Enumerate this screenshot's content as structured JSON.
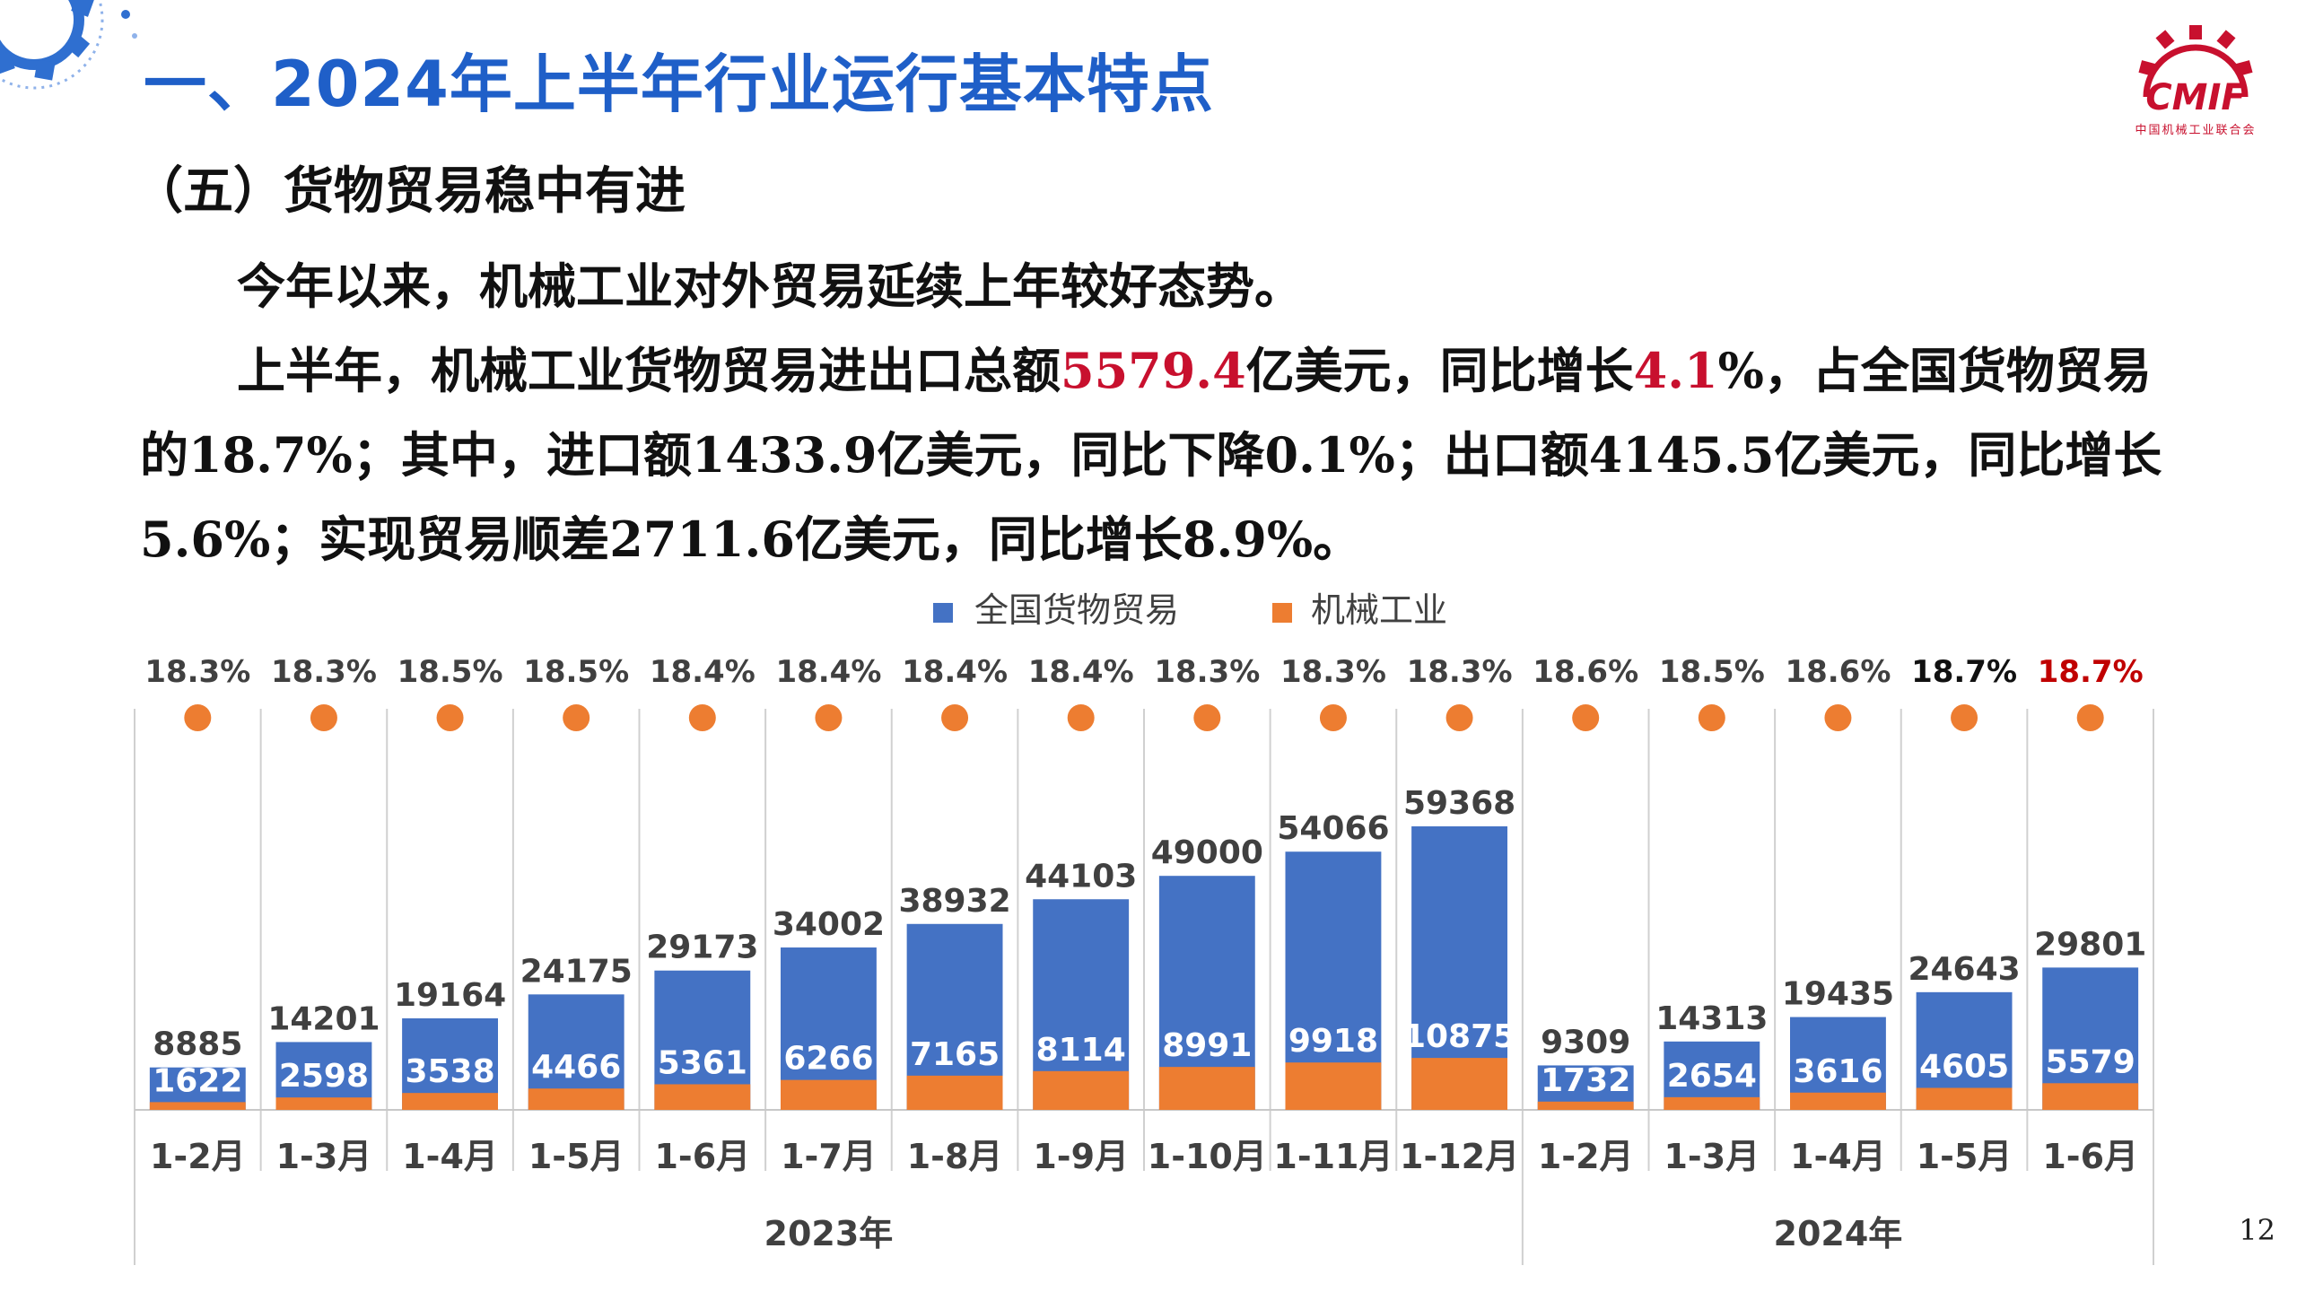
{
  "slide": {
    "title": "一、2024年上半年行业运行基本特点",
    "section_heading": "（五）货物贸易稳中有进",
    "para1": "今年以来，机械工业对外贸易延续上年较好态势。",
    "para2_a": "上半年，机械工业货物贸易进出口总额",
    "para2_v1": "5579.4",
    "para2_b": "亿美元，同比增长",
    "para2_v2": "4.1",
    "para2_c": "%，占全国货物贸易的18.7%；其中，进口额1433.9亿美元，同比下降0.1%；出口额4145.5亿美元，同比增长5.6%；实现贸易顺差2711.6亿美元，同比增长8.9%。",
    "page_number": "12",
    "logo_text": "CMIF",
    "logo_subtitle": "中国机械工业联合会"
  },
  "colors": {
    "title_blue": "#1f5fc8",
    "highlight_red": "#c8102e",
    "national_bar": "#4472c4",
    "machinery_bar": "#ed7d31",
    "share_dot": "#ed7d31"
  },
  "chart_data": {
    "type": "bar",
    "legend": [
      "全国货物贸易",
      "机械工业"
    ],
    "legend_position": "top-center",
    "groups": [
      {
        "label": "2023年",
        "categories": [
          "1-2月",
          "1-3月",
          "1-4月",
          "1-5月",
          "1-6月",
          "1-7月",
          "1-8月",
          "1-9月",
          "1-10月",
          "1-11月",
          "1-12月"
        ]
      },
      {
        "label": "2024年",
        "categories": [
          "1-2月",
          "1-3月",
          "1-4月",
          "1-5月",
          "1-6月"
        ]
      }
    ],
    "categories": [
      "1-2月",
      "1-3月",
      "1-4月",
      "1-5月",
      "1-6月",
      "1-7月",
      "1-8月",
      "1-9月",
      "1-10月",
      "1-11月",
      "1-12月",
      "1-2月",
      "1-3月",
      "1-4月",
      "1-5月",
      "1-6月"
    ],
    "series": [
      {
        "name": "全国货物贸易",
        "values": [
          8885,
          14201,
          19164,
          24175,
          29173,
          34002,
          38932,
          44103,
          49000,
          54066,
          59368,
          9309,
          14313,
          19435,
          24643,
          29801
        ]
      },
      {
        "name": "机械工业",
        "values": [
          1622,
          2598,
          3538,
          4466,
          5361,
          6266,
          7165,
          8114,
          8991,
          9918,
          10875,
          1732,
          2654,
          3616,
          4605,
          5579
        ]
      }
    ],
    "share_labels": [
      "18.3%",
      "18.3%",
      "18.5%",
      "18.5%",
      "18.4%",
      "18.4%",
      "18.4%",
      "18.4%",
      "18.3%",
      "18.3%",
      "18.3%",
      "18.6%",
      "18.5%",
      "18.6%",
      "18.7%",
      "18.7%"
    ],
    "share_label_colors": [
      "#404040",
      "#404040",
      "#404040",
      "#404040",
      "#404040",
      "#404040",
      "#404040",
      "#404040",
      "#404040",
      "#404040",
      "#404040",
      "#404040",
      "#404040",
      "#404040",
      "#111111",
      "#c00000"
    ],
    "ylim": [
      0,
      62000
    ],
    "grid": false
  }
}
